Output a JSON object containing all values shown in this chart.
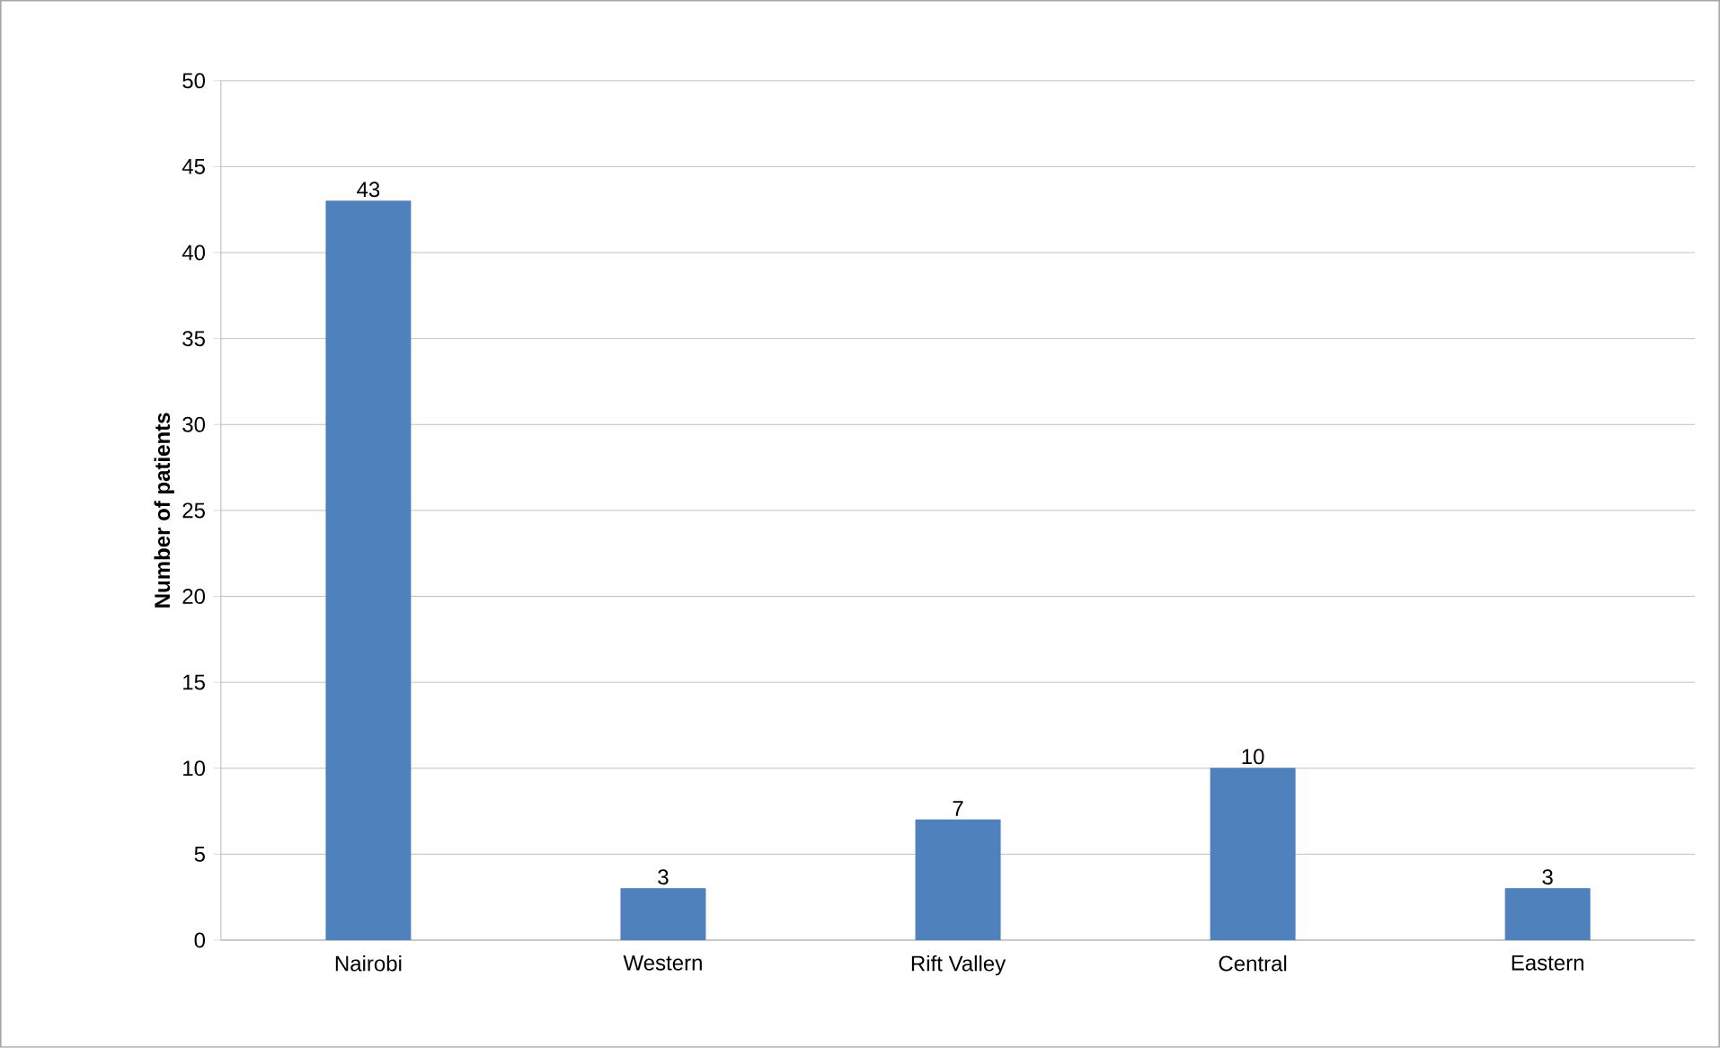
{
  "chart_data": {
    "type": "bar",
    "ylabel": "Number of patients",
    "categories": [
      "Nairobi",
      "Western",
      "Rift Valley",
      "Central",
      "Eastern"
    ],
    "values": [
      43,
      3,
      7,
      10,
      3
    ],
    "color": "#4f81bd",
    "ylim": [
      0,
      50
    ],
    "yticks": [
      0,
      5,
      10,
      15,
      20,
      25,
      30,
      35,
      40,
      45,
      50
    ],
    "grid": "y",
    "data_labels": true
  }
}
